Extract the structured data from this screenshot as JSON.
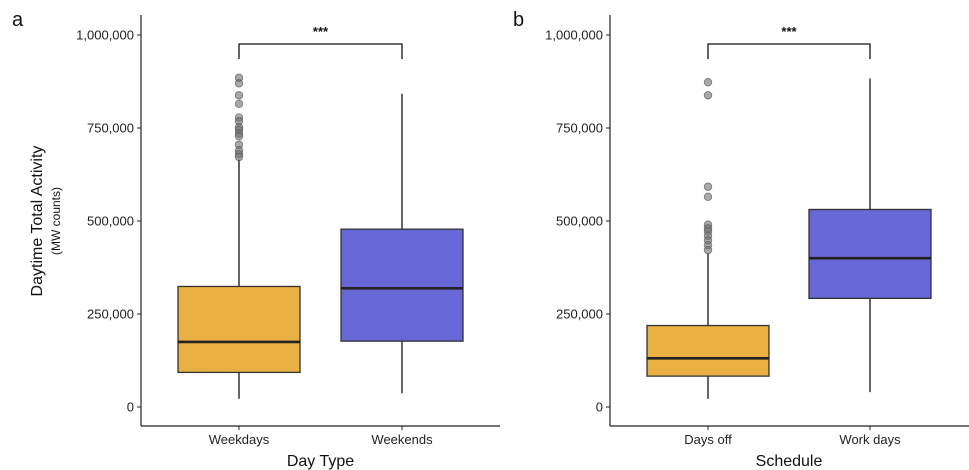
{
  "chart_data": [
    {
      "type": "box",
      "panel_label": "a",
      "xlabel": "Day Type",
      "ylabel": "Daytime Total Activity",
      "ylabel_sub": "(MW counts)",
      "ylim": [
        0,
        1000000
      ],
      "yticks": [
        0,
        250000,
        500000,
        750000,
        1000000
      ],
      "ytick_labels": [
        "0",
        "250,000",
        "500,000",
        "750,000",
        "1,000,000"
      ],
      "categories": [
        "Weekdays",
        "Weekends"
      ],
      "boxes": [
        {
          "category": "Weekdays",
          "color": "#E8B042",
          "whisker_low": 22000,
          "q1": 93000,
          "median": 175000,
          "q3": 324000,
          "whisker_high": 665000,
          "outliers": [
            885000,
            870000,
            838000,
            815000,
            778000,
            768000,
            752000,
            745000,
            735000,
            728000,
            705000,
            690000,
            680000,
            672000
          ]
        },
        {
          "category": "Weekends",
          "color": "#6767D6",
          "whisker_low": 37000,
          "q1": 177000,
          "median": 319000,
          "q3": 478000,
          "whisker_high": 842000,
          "outliers": []
        }
      ],
      "significance": "***"
    },
    {
      "type": "box",
      "panel_label": "b",
      "xlabel": "Schedule",
      "ylabel": "",
      "ylim": [
        0,
        1000000
      ],
      "yticks": [
        0,
        250000,
        500000,
        750000,
        1000000
      ],
      "ytick_labels": [
        "0",
        "250,000",
        "500,000",
        "750,000",
        "1,000,000"
      ],
      "categories": [
        "Days off",
        "Work days"
      ],
      "boxes": [
        {
          "category": "Days off",
          "color": "#E8B042",
          "whisker_low": 22000,
          "q1": 83000,
          "median": 131000,
          "q3": 219000,
          "whisker_high": 412000,
          "outliers": [
            873000,
            838000,
            592000,
            565000,
            490000,
            480000,
            472000,
            460000,
            448000,
            435000,
            422000
          ]
        },
        {
          "category": "Work days",
          "color": "#6767D6",
          "whisker_low": 40000,
          "q1": 292000,
          "median": 400000,
          "q3": 531000,
          "whisker_high": 883000,
          "outliers": []
        }
      ],
      "significance": "***"
    }
  ]
}
